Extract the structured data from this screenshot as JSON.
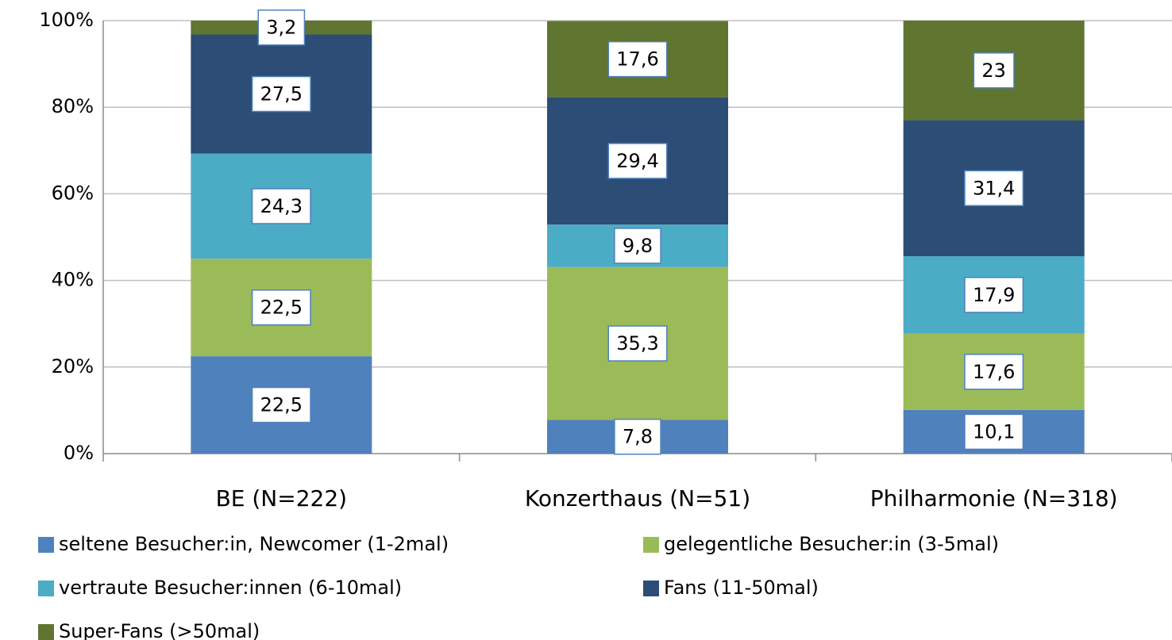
{
  "chart_data": {
    "type": "stacked_bar",
    "categories": [
      "BE (N=222)",
      "Konzerthaus (N=51)",
      "Philharmonie (N=318)"
    ],
    "series": [
      {
        "name": "seltene Besucher:in, Newcomer (1-2mal)",
        "color": "#4f81bd",
        "values": [
          22.5,
          7.8,
          10.1
        ],
        "value_labels": [
          "22,5",
          "7,8",
          "10,1"
        ]
      },
      {
        "name": "gelegentliche Besucher:in (3-5mal)",
        "color": "#9bbb59",
        "values": [
          22.5,
          35.3,
          17.6
        ],
        "value_labels": [
          "22,5",
          "35,3",
          "17,6"
        ]
      },
      {
        "name": "vertraute Besucher:innen (6-10mal)",
        "color": "#4bacc6",
        "values": [
          24.3,
          9.8,
          17.9
        ],
        "value_labels": [
          "24,3",
          "9,8",
          "17,9"
        ]
      },
      {
        "name": "Fans (11-50mal)",
        "color": "#2c4d75",
        "values": [
          27.5,
          29.4,
          31.4
        ],
        "value_labels": [
          "27,5",
          "29,4",
          "31,4"
        ]
      },
      {
        "name": "Super-Fans (>50mal)",
        "color": "#5f7530",
        "values": [
          3.2,
          17.6,
          23
        ],
        "value_labels": [
          "3,2",
          "17,6",
          "23"
        ]
      }
    ],
    "ylim": [
      0,
      100
    ],
    "yticks": [
      {
        "value": 0,
        "label": "0%"
      },
      {
        "value": 20,
        "label": "20%"
      },
      {
        "value": 40,
        "label": "40%"
      },
      {
        "value": 60,
        "label": "60%"
      },
      {
        "value": 80,
        "label": "80%"
      },
      {
        "value": 100,
        "label": "100%"
      }
    ],
    "grid": true
  }
}
